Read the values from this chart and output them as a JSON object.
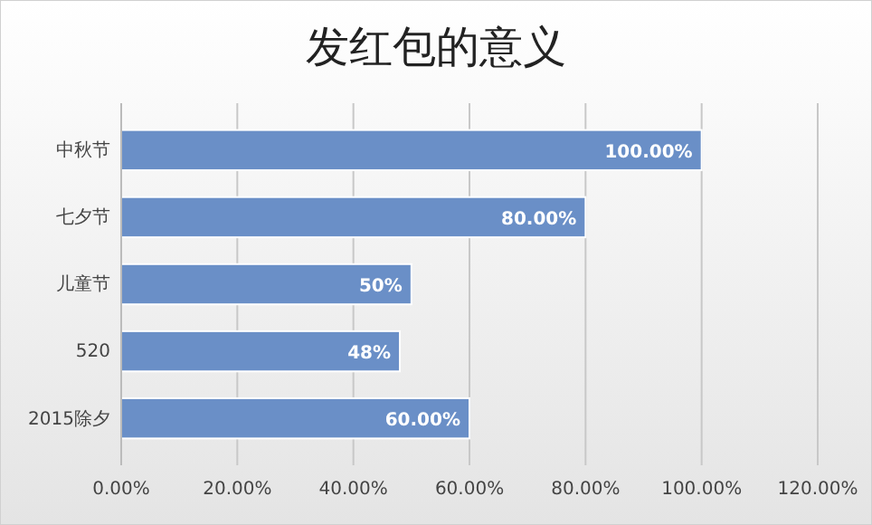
{
  "chart_data": {
    "type": "bar",
    "orientation": "horizontal",
    "title": "发红包的意义",
    "categories": [
      "中秋节",
      "七夕节",
      "儿童节",
      "520",
      "2015除夕"
    ],
    "values": [
      100,
      80,
      50,
      48,
      60
    ],
    "value_labels": [
      "100.00%",
      "80.00%",
      "50%",
      "48%",
      "60.00%"
    ],
    "color": "#6a8fc7",
    "xlim": [
      0,
      120
    ],
    "xticks": [
      {
        "value": 0,
        "label": "0.00%"
      },
      {
        "value": 20,
        "label": "20.00%"
      },
      {
        "value": 40,
        "label": "40.00%"
      },
      {
        "value": 60,
        "label": "60.00%"
      },
      {
        "value": 80,
        "label": "80.00%"
      },
      {
        "value": 100,
        "label": "100.00%"
      },
      {
        "value": 120,
        "label": "120.00%"
      }
    ],
    "grid": "x"
  }
}
